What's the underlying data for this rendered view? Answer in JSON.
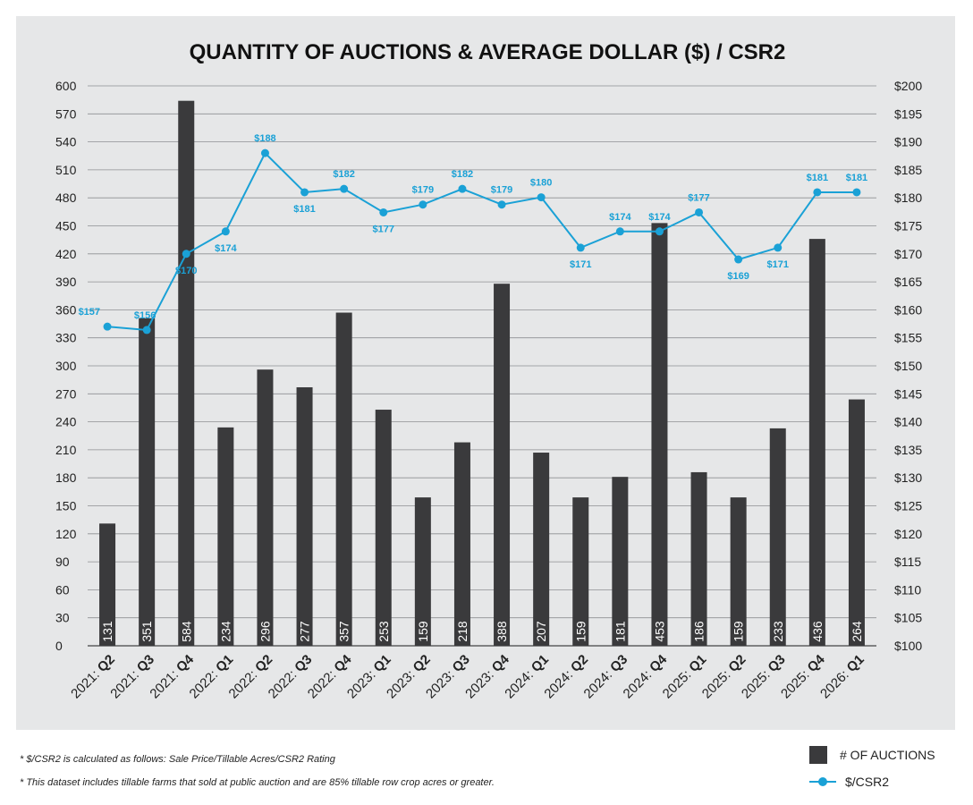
{
  "chart_data": {
    "type": "bar+line",
    "title": "QUANTITY OF AUCTIONS & AVERAGE DOLLAR ($) / CSR2",
    "categories": [
      {
        "year": "2021:",
        "q": "Q2"
      },
      {
        "year": "2021:",
        "q": "Q3"
      },
      {
        "year": "2021:",
        "q": "Q4"
      },
      {
        "year": "2022:",
        "q": "Q1"
      },
      {
        "year": "2022:",
        "q": "Q2"
      },
      {
        "year": "2022:",
        "q": "Q3"
      },
      {
        "year": "2022:",
        "q": "Q4"
      },
      {
        "year": "2023:",
        "q": "Q1"
      },
      {
        "year": "2023:",
        "q": "Q2"
      },
      {
        "year": "2023:",
        "q": "Q3"
      },
      {
        "year": "2023:",
        "q": "Q4"
      },
      {
        "year": "2024:",
        "q": "Q1"
      },
      {
        "year": "2024:",
        "q": "Q2"
      },
      {
        "year": "2024:",
        "q": "Q3"
      },
      {
        "year": "2024:",
        "q": "Q4"
      },
      {
        "year": "2025:",
        "q": "Q1"
      },
      {
        "year": "2025:",
        "q": "Q2"
      },
      {
        "year": "2025:",
        "q": "Q3"
      },
      {
        "year": "2025:",
        "q": "Q4"
      },
      {
        "year": "2026:",
        "q": "Q1"
      }
    ],
    "series": [
      {
        "name": "# OF AUCTIONS",
        "type": "bar",
        "axis": "left",
        "color": "#3a3a3c",
        "values": [
          131,
          351,
          584,
          234,
          296,
          277,
          357,
          253,
          159,
          218,
          388,
          207,
          159,
          181,
          453,
          186,
          159,
          233,
          436,
          264
        ]
      },
      {
        "name": "$/CSR2",
        "type": "line",
        "axis": "right",
        "color": "#1aa1d6",
        "values": [
          157,
          156.4,
          170,
          174,
          188,
          181,
          181.6,
          177.4,
          178.8,
          181.6,
          178.8,
          180.1,
          171.1,
          174,
          174,
          177.4,
          169,
          171.1,
          181,
          181
        ],
        "labels": [
          "$157",
          "$156",
          "$170",
          "$174",
          "$188",
          "$181",
          "$182",
          "$177",
          "$179",
          "$182",
          "$179",
          "$180",
          "$171",
          "$174",
          "$174",
          "$177",
          "$169",
          "$171",
          "$181",
          "$181"
        ],
        "label_pos": [
          "above",
          "above",
          "below",
          "below",
          "above",
          "below",
          "above",
          "below",
          "above",
          "above",
          "above",
          "above",
          "below",
          "above",
          "above",
          "above",
          "below",
          "below",
          "above",
          "above"
        ]
      }
    ],
    "y_left": {
      "min": 0,
      "max": 600,
      "step": 30
    },
    "y_right": {
      "min": 100,
      "max": 200,
      "step": 5,
      "prefix": "$"
    },
    "grid": true
  },
  "footnotes": [
    "* $/CSR2 is calculated as follows: Sale Price/Tillable Acres/CSR2 Rating",
    "* This dataset includes tillable farms that sold at public auction and are 85% tillable row crop acres or greater."
  ],
  "legend": {
    "bar_label": "# OF AUCTIONS",
    "line_label": "$/CSR2"
  }
}
